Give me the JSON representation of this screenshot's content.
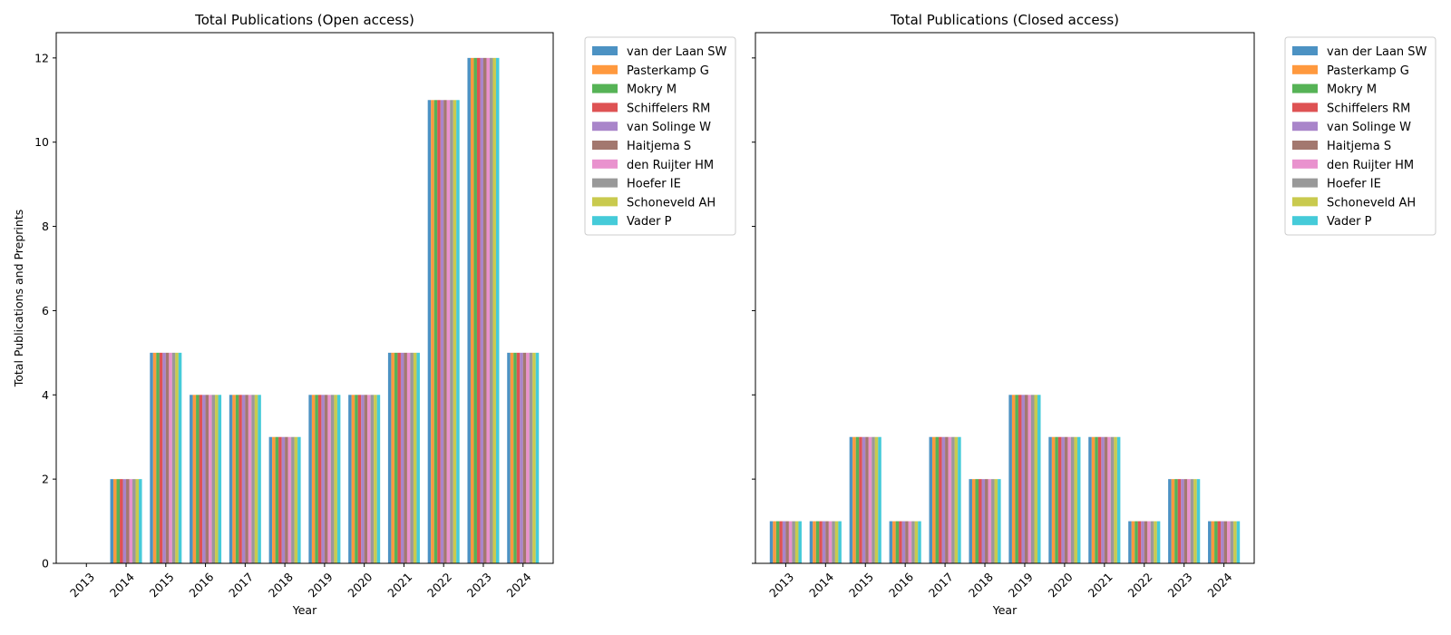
{
  "chart_data": [
    {
      "type": "bar",
      "title": "Total Publications (Open access)",
      "xlabel": "Year",
      "ylabel": "Total Publications and Preprints",
      "ylim": [
        0,
        12.6
      ],
      "yticks": [
        0,
        2,
        4,
        6,
        8,
        10,
        12
      ],
      "grid": false,
      "legend_position": "outside-right-top",
      "categories": [
        "2013",
        "2014",
        "2015",
        "2016",
        "2017",
        "2018",
        "2019",
        "2020",
        "2021",
        "2022",
        "2023",
        "2024"
      ],
      "series": [
        {
          "name": "van der Laan SW",
          "color": "#1f77b4",
          "values": [
            0,
            2,
            5,
            4,
            4,
            3,
            4,
            4,
            5,
            11,
            12,
            5
          ]
        },
        {
          "name": "Pasterkamp G",
          "color": "#ff7f0e",
          "values": [
            0,
            2,
            5,
            4,
            4,
            3,
            4,
            4,
            5,
            11,
            12,
            5
          ]
        },
        {
          "name": "Mokry M",
          "color": "#2ca02c",
          "values": [
            0,
            2,
            5,
            4,
            4,
            3,
            4,
            4,
            5,
            11,
            12,
            5
          ]
        },
        {
          "name": "Schiffelers RM",
          "color": "#d62728",
          "values": [
            0,
            2,
            5,
            4,
            4,
            3,
            4,
            4,
            5,
            11,
            12,
            5
          ]
        },
        {
          "name": "van Solinge W",
          "color": "#9467bd",
          "values": [
            0,
            2,
            5,
            4,
            4,
            3,
            4,
            4,
            5,
            11,
            12,
            5
          ]
        },
        {
          "name": "Haitjema S",
          "color": "#8c564b",
          "values": [
            0,
            2,
            5,
            4,
            4,
            3,
            4,
            4,
            5,
            11,
            12,
            5
          ]
        },
        {
          "name": "den Ruijter HM",
          "color": "#e377c2",
          "values": [
            0,
            2,
            5,
            4,
            4,
            3,
            4,
            4,
            5,
            11,
            12,
            5
          ]
        },
        {
          "name": "Hoefer IE",
          "color": "#7f7f7f",
          "values": [
            0,
            2,
            5,
            4,
            4,
            3,
            4,
            4,
            5,
            11,
            12,
            5
          ]
        },
        {
          "name": "Schoneveld AH",
          "color": "#bcbd22",
          "values": [
            0,
            2,
            5,
            4,
            4,
            3,
            4,
            4,
            5,
            11,
            12,
            5
          ]
        },
        {
          "name": "Vader P",
          "color": "#17becf",
          "values": [
            0,
            2,
            5,
            4,
            4,
            3,
            4,
            4,
            5,
            11,
            12,
            5
          ]
        }
      ]
    },
    {
      "type": "bar",
      "title": "Total Publications (Closed access)",
      "xlabel": "Year",
      "ylabel": "",
      "ylim": [
        0,
        12.6
      ],
      "yticks": [
        0,
        2,
        4,
        6,
        8,
        10,
        12
      ],
      "grid": false,
      "legend_position": "outside-right-top",
      "categories": [
        "2013",
        "2014",
        "2015",
        "2016",
        "2017",
        "2018",
        "2019",
        "2020",
        "2021",
        "2022",
        "2023",
        "2024"
      ],
      "series": [
        {
          "name": "van der Laan SW",
          "color": "#1f77b4",
          "values": [
            1,
            1,
            3,
            1,
            3,
            2,
            4,
            3,
            3,
            1,
            2,
            1
          ]
        },
        {
          "name": "Pasterkamp G",
          "color": "#ff7f0e",
          "values": [
            1,
            1,
            3,
            1,
            3,
            2,
            4,
            3,
            3,
            1,
            2,
            1
          ]
        },
        {
          "name": "Mokry M",
          "color": "#2ca02c",
          "values": [
            1,
            1,
            3,
            1,
            3,
            2,
            4,
            3,
            3,
            1,
            2,
            1
          ]
        },
        {
          "name": "Schiffelers RM",
          "color": "#d62728",
          "values": [
            1,
            1,
            3,
            1,
            3,
            2,
            4,
            3,
            3,
            1,
            2,
            1
          ]
        },
        {
          "name": "van Solinge W",
          "color": "#9467bd",
          "values": [
            1,
            1,
            3,
            1,
            3,
            2,
            4,
            3,
            3,
            1,
            2,
            1
          ]
        },
        {
          "name": "Haitjema S",
          "color": "#8c564b",
          "values": [
            1,
            1,
            3,
            1,
            3,
            2,
            4,
            3,
            3,
            1,
            2,
            1
          ]
        },
        {
          "name": "den Ruijter HM",
          "color": "#e377c2",
          "values": [
            1,
            1,
            3,
            1,
            3,
            2,
            4,
            3,
            3,
            1,
            2,
            1
          ]
        },
        {
          "name": "Hoefer IE",
          "color": "#7f7f7f",
          "values": [
            1,
            1,
            3,
            1,
            3,
            2,
            4,
            3,
            3,
            1,
            2,
            1
          ]
        },
        {
          "name": "Schoneveld AH",
          "color": "#bcbd22",
          "values": [
            1,
            1,
            3,
            1,
            3,
            2,
            4,
            3,
            3,
            1,
            2,
            1
          ]
        },
        {
          "name": "Vader P",
          "color": "#17becf",
          "values": [
            1,
            1,
            3,
            1,
            3,
            2,
            4,
            3,
            3,
            1,
            2,
            1
          ]
        }
      ]
    }
  ]
}
